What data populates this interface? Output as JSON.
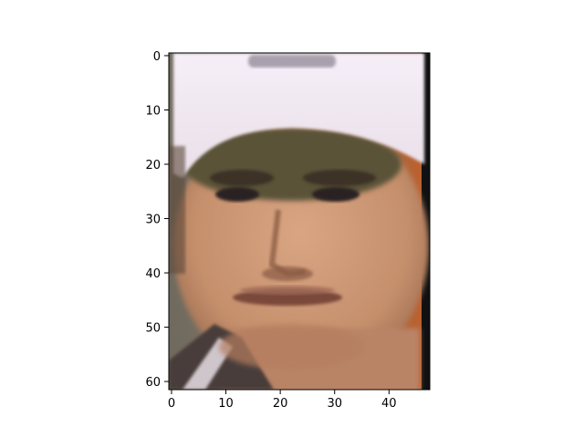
{
  "figure": {
    "image_subject": "cropped face photo of a young man wearing a white cap",
    "colors": {
      "background": "#ffffff",
      "axis": "#000000",
      "cap_white": "#f3eaf4",
      "cap_shadow": "#5a5337",
      "skin": "#c58f6c",
      "skin_highlight": "#d9a583",
      "skin_shadow": "#9a6b4f",
      "hair_brow": "#3e3226",
      "bg_left": "#6f6a5e",
      "bg_right": "#bf5e2a",
      "shirt": "#4a3c3a"
    }
  },
  "chart_data": {
    "type": "image",
    "image_size": {
      "width": 48,
      "height": 62
    },
    "xlim": [
      -0.5,
      47.5
    ],
    "ylim": [
      61.5,
      -0.5
    ],
    "x_ticks": [
      0,
      10,
      20,
      30,
      40
    ],
    "y_ticks": [
      0,
      10,
      20,
      30,
      40,
      50,
      60
    ],
    "x_tick_labels": [
      "0",
      "10",
      "20",
      "30",
      "40"
    ],
    "y_tick_labels": [
      "0",
      "10",
      "20",
      "30",
      "40",
      "50",
      "60"
    ],
    "grid": false,
    "legend": "none"
  }
}
